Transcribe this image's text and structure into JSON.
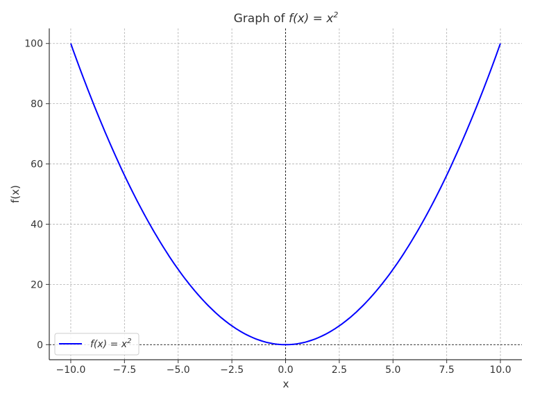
{
  "chart_data": {
    "type": "line",
    "title": "Graph of f(x) = x²",
    "title_plain": "Graph of ",
    "title_func": "f(x) = x",
    "title_exp": "2",
    "xlabel": "x",
    "ylabel": "f(x)",
    "xlim": [
      -11,
      11
    ],
    "ylim": [
      -5,
      105
    ],
    "xticks": [
      -10.0,
      -7.5,
      -5.0,
      -2.5,
      0.0,
      2.5,
      5.0,
      7.5,
      10.0
    ],
    "xtick_labels": [
      "−10.0",
      "−7.5",
      "−5.0",
      "−2.5",
      "0.0",
      "2.5",
      "5.0",
      "7.5",
      "10.0"
    ],
    "yticks": [
      0,
      20,
      40,
      60,
      80,
      100
    ],
    "ytick_labels": [
      "0",
      "20",
      "40",
      "60",
      "80",
      "100"
    ],
    "grid": true,
    "legend_position": "lower-left",
    "series": [
      {
        "name": "f(x) = x²",
        "name_func": "f(x) = x",
        "name_exp": "2",
        "function": "x^2",
        "x_range": [
          -10,
          10
        ],
        "color": "#0000ff"
      }
    ],
    "reference_lines": {
      "x": 0,
      "y": 0,
      "color": "#000000"
    }
  }
}
